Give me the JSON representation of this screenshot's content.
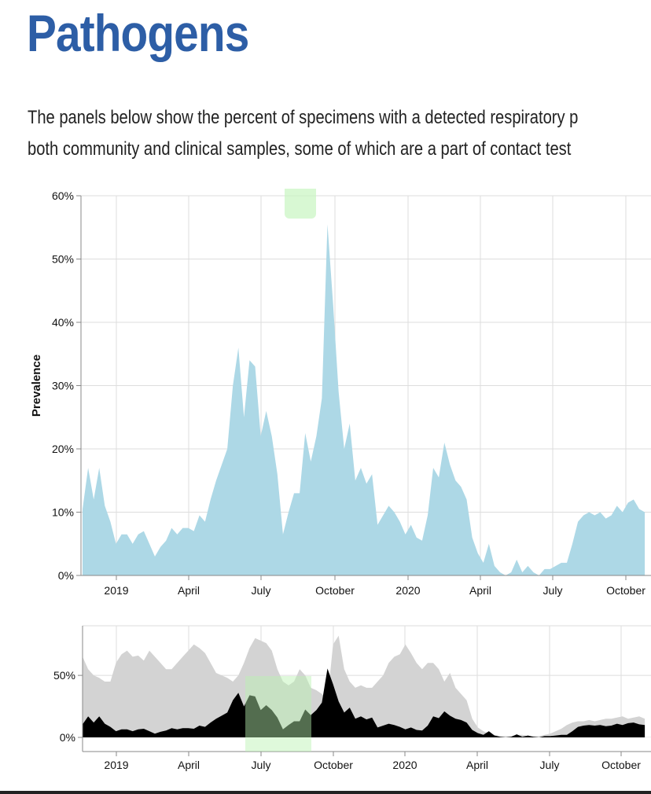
{
  "page": {
    "title": "Pathogens",
    "intro_line_1": "The panels below show the percent of specimens with a detected respiratory p",
    "intro_line_2": "both community and clinical samples, some of which are a part of contact test"
  },
  "colors": {
    "title": "#2d5ea6",
    "main_area": "#add8e6",
    "overview_total": "#d3d3d3",
    "overview_selected": "#000000",
    "grid": "#dddddd"
  },
  "chart_data": [
    {
      "type": "area",
      "ylabel": "Prevalence",
      "yticks": [
        "0%",
        "10%",
        "20%",
        "30%",
        "40%",
        "50%",
        "60%"
      ],
      "ylim": [
        0,
        60
      ],
      "xticks": [
        "2019",
        "April",
        "July",
        "October",
        "2020",
        "April",
        "July",
        "October"
      ],
      "x_unit": "week",
      "grid": true,
      "series": [
        {
          "color": "#add8e6",
          "values": [
            10.5,
            17,
            12,
            17,
            11,
            8.5,
            5,
            6.5,
            6.5,
            5,
            6.5,
            7,
            5,
            3,
            4.5,
            5.5,
            7.5,
            6.5,
            7.5,
            7.5,
            7,
            9.5,
            8.5,
            12,
            15,
            17.5,
            20,
            30,
            36,
            25,
            34,
            33,
            22,
            26,
            22,
            16,
            6.5,
            10,
            13,
            13,
            22.5,
            18,
            22,
            28,
            55.5,
            43,
            29,
            20,
            24,
            15,
            17,
            14.5,
            16,
            8,
            9.5,
            11,
            10,
            8.5,
            6.5,
            8,
            6,
            5.5,
            9.5,
            17,
            15.5,
            21,
            17.5,
            15,
            14,
            12,
            6,
            3.5,
            2,
            5,
            1.5,
            0.5,
            0,
            0.5,
            2.5,
            0.5,
            1.5,
            0.5,
            0,
            1,
            1,
            1.5,
            2,
            2,
            5,
            8.5,
            9.5,
            10,
            9.5,
            10,
            9,
            9.5,
            11,
            10,
            11.5,
            12,
            10.5,
            10
          ]
        }
      ]
    },
    {
      "type": "area",
      "ylabel": "",
      "yticks": [
        "0%",
        "50%"
      ],
      "ylim": [
        0,
        90
      ],
      "xticks": [
        "2019",
        "April",
        "July",
        "October",
        "2020",
        "April",
        "July",
        "October"
      ],
      "grid": true,
      "series": [
        {
          "color": "#d3d3d3",
          "values": [
            65,
            55,
            50,
            48,
            45,
            45,
            60,
            67,
            70,
            65,
            66,
            62,
            70,
            65,
            60,
            55,
            55,
            60,
            65,
            70,
            75,
            72,
            68,
            60,
            52,
            50,
            48,
            45,
            50,
            60,
            72,
            80,
            78,
            76,
            70,
            55,
            45,
            42,
            45,
            55,
            50,
            40,
            38,
            35,
            30,
            75,
            82,
            55,
            45,
            40,
            42,
            40,
            40,
            45,
            50,
            60,
            65,
            67,
            75,
            68,
            60,
            55,
            60,
            60,
            55,
            45,
            52,
            40,
            35,
            30,
            15,
            8,
            5,
            3,
            2,
            1,
            1,
            1,
            2,
            2,
            1,
            1,
            1,
            2,
            3,
            5,
            7,
            10,
            12,
            13,
            13,
            14,
            13,
            14,
            15,
            15,
            16,
            17,
            15,
            16,
            17,
            15
          ]
        },
        {
          "color": "#000000",
          "values": [
            10.5,
            17,
            12,
            17,
            11,
            8.5,
            5,
            6.5,
            6.5,
            5,
            6.5,
            7,
            5,
            3,
            4.5,
            5.5,
            7.5,
            6.5,
            7.5,
            7.5,
            7,
            9.5,
            8.5,
            12,
            15,
            17.5,
            20,
            30,
            36,
            25,
            34,
            33,
            22,
            26,
            22,
            16,
            6.5,
            10,
            13,
            13,
            22.5,
            18,
            22,
            28,
            55.5,
            43,
            29,
            20,
            24,
            15,
            17,
            14.5,
            16,
            8,
            9.5,
            11,
            10,
            8.5,
            6.5,
            8,
            6,
            5.5,
            9.5,
            17,
            15.5,
            21,
            17.5,
            15,
            14,
            12,
            6,
            3.5,
            2,
            5,
            1.5,
            0.5,
            0,
            0.5,
            2.5,
            0.5,
            1.5,
            0.5,
            0,
            1,
            1,
            1.5,
            2,
            2,
            5,
            8.5,
            9.5,
            10,
            9.5,
            10,
            9,
            9.5,
            11,
            10,
            11.5,
            12,
            10.5,
            10
          ]
        }
      ]
    }
  ]
}
